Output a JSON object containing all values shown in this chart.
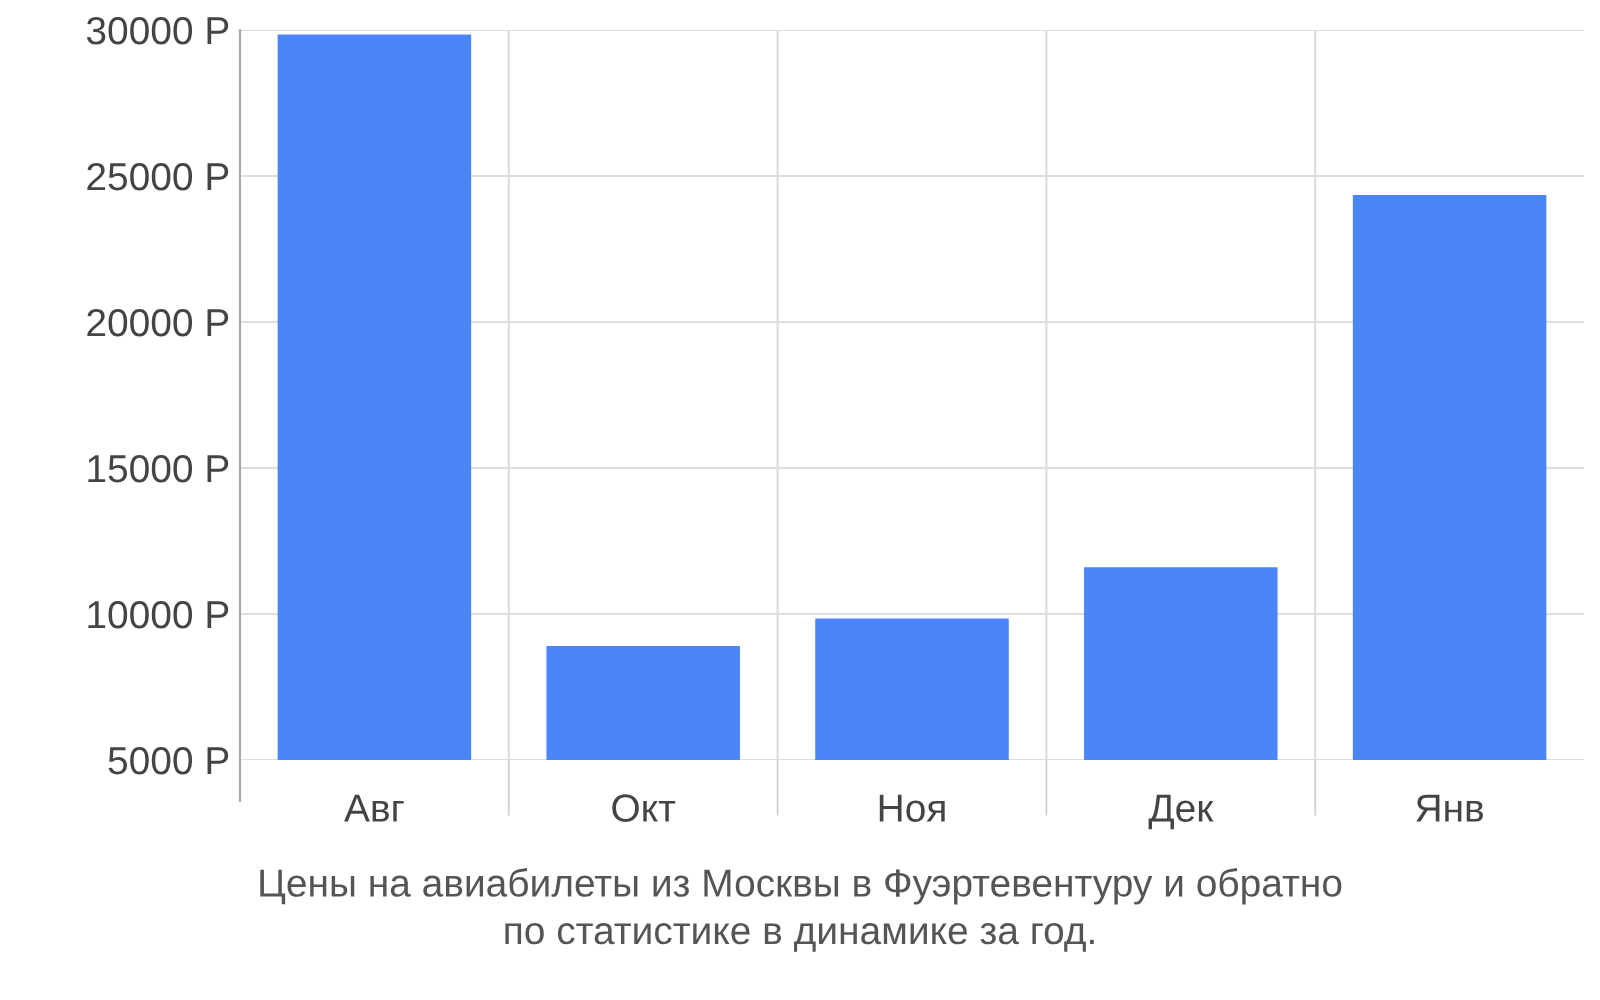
{
  "chart_data": {
    "type": "bar",
    "categories": [
      "Авг",
      "Окт",
      "Ноя",
      "Дек",
      "Янв"
    ],
    "values": [
      29850,
      8900,
      9850,
      11600,
      24350
    ],
    "color": "#4a86f8",
    "ylim": [
      5000,
      30000
    ],
    "yticks": [
      {
        "value": 5000,
        "label": "5000 Р"
      },
      {
        "value": 10000,
        "label": "10000 Р"
      },
      {
        "value": 15000,
        "label": "15000 Р"
      },
      {
        "value": 20000,
        "label": "20000 Р"
      },
      {
        "value": 25000,
        "label": "25000 Р"
      },
      {
        "value": 30000,
        "label": "30000 Р"
      }
    ],
    "grid": true,
    "annotations": [
      "Цены на авиабилеты из Москвы в Фуэртевентуру и обратно\nпо статистике в динамике за год."
    ]
  }
}
